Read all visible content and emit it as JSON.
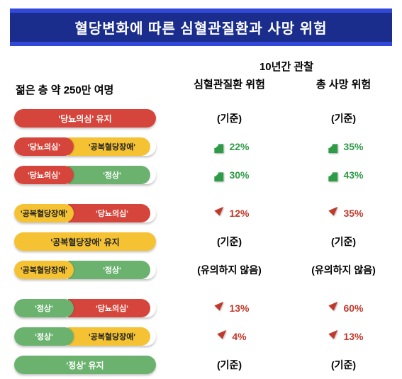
{
  "title": "혈당변화에 따른 심혈관질환과 사망 위험",
  "headers": {
    "left": "젊은 층 약 250만 여명",
    "obs": "10년간 관찰",
    "col1": "심혈관질환 위험",
    "col2": "총 사망 위험"
  },
  "labels": {
    "suspect": "'당뇨의심'",
    "ifg": "'공복혈당장애'",
    "normal": "'정상'",
    "suspect_keep": "'당뇨의심' 유지",
    "ifg_keep": "'공복혈당장애' 유지",
    "normal_keep": "'정상' 유지",
    "baseline": "(기준)",
    "ns": "(유의하지 않음)"
  },
  "colors": {
    "red": "#d6453b",
    "yellow": "#f4c233",
    "green": "#6bb26f",
    "down": "#2e9b47",
    "up": "#c0392b",
    "title_bg": "#1a2d8c",
    "title_border": "#3148d8"
  },
  "rows": [
    {
      "pill": {
        "type": "full",
        "color": "red",
        "text_key": "suspect_keep"
      },
      "c1": {
        "kind": "base"
      },
      "c2": {
        "kind": "base"
      }
    },
    {
      "pill": {
        "type": "split",
        "left": {
          "color": "red",
          "text_key": "suspect"
        },
        "right": {
          "color": "yellow",
          "text_key": "ifg"
        }
      },
      "c1": {
        "kind": "down",
        "val": "22%"
      },
      "c2": {
        "kind": "down",
        "val": "35%"
      }
    },
    {
      "pill": {
        "type": "split",
        "left": {
          "color": "red",
          "text_key": "suspect"
        },
        "right": {
          "color": "green",
          "text_key": "normal"
        }
      },
      "c1": {
        "kind": "down",
        "val": "30%"
      },
      "c2": {
        "kind": "down",
        "val": "43%"
      }
    },
    {
      "gap": true
    },
    {
      "pill": {
        "type": "split",
        "left": {
          "color": "yellow",
          "text_key": "ifg"
        },
        "right": {
          "color": "red",
          "text_key": "suspect"
        }
      },
      "c1": {
        "kind": "up",
        "val": "12%"
      },
      "c2": {
        "kind": "up",
        "val": "35%"
      }
    },
    {
      "pill": {
        "type": "full",
        "color": "yellow",
        "text_key": "ifg_keep"
      },
      "c1": {
        "kind": "base"
      },
      "c2": {
        "kind": "base"
      }
    },
    {
      "pill": {
        "type": "split",
        "left": {
          "color": "yellow",
          "text_key": "ifg"
        },
        "right": {
          "color": "green",
          "text_key": "normal"
        }
      },
      "c1": {
        "kind": "ns"
      },
      "c2": {
        "kind": "ns"
      }
    },
    {
      "gap": true
    },
    {
      "pill": {
        "type": "split",
        "left": {
          "color": "green",
          "text_key": "normal"
        },
        "right": {
          "color": "red",
          "text_key": "suspect"
        }
      },
      "c1": {
        "kind": "up",
        "val": "13%"
      },
      "c2": {
        "kind": "up",
        "val": "60%"
      }
    },
    {
      "pill": {
        "type": "split",
        "left": {
          "color": "green",
          "text_key": "normal"
        },
        "right": {
          "color": "yellow",
          "text_key": "ifg"
        }
      },
      "c1": {
        "kind": "up",
        "val": "4%"
      },
      "c2": {
        "kind": "up",
        "val": "13%"
      }
    },
    {
      "pill": {
        "type": "full",
        "color": "green",
        "text_key": "normal_keep"
      },
      "c1": {
        "kind": "base"
      },
      "c2": {
        "kind": "base"
      }
    }
  ]
}
